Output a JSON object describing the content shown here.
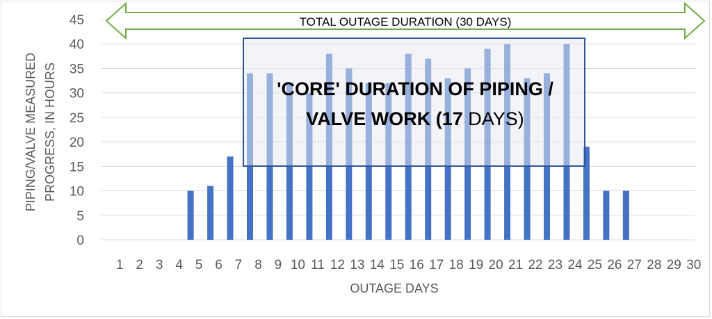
{
  "chart_data": {
    "type": "bar",
    "title": "",
    "xlabel": "OUTAGE DAYS",
    "ylabel_lines": [
      "PIPING/VALVE MEASURED",
      "PROGRESS, IN HOURS"
    ],
    "categories": [
      "1",
      "2",
      "3",
      "4",
      "5",
      "6",
      "7",
      "8",
      "9",
      "10",
      "11",
      "12",
      "13",
      "14",
      "15",
      "16",
      "17",
      "18",
      "19",
      "20",
      "21",
      "22",
      "23",
      "24",
      "25",
      "26",
      "27",
      "28",
      "29",
      "30"
    ],
    "values": [
      0,
      0,
      0,
      0,
      10,
      11,
      17,
      34,
      34,
      32,
      30,
      38,
      35,
      32,
      32,
      38,
      37,
      33,
      35,
      39,
      40,
      33,
      34,
      40,
      19,
      10,
      10,
      0,
      0,
      0
    ],
    "ylim": [
      0,
      45
    ],
    "yticks": [
      "0",
      "5",
      "10",
      "15",
      "20",
      "25",
      "30",
      "35",
      "40",
      "45"
    ],
    "grid": true,
    "legend": "none",
    "bar_color": "#4472c4",
    "annotations": {
      "total_label": "TOTAL OUTAGE DURATION (30 DAYS)",
      "total_arrow_color": "#70ad47",
      "core_label_line1": "'CORE' DURATION OF PIPING /",
      "core_label_line2_bold": "VALVE WORK (17",
      "core_label_line2_rest": " DAYS)",
      "core_box_color": "#2f5597",
      "core_fill_color": "#e7eaf1"
    }
  }
}
